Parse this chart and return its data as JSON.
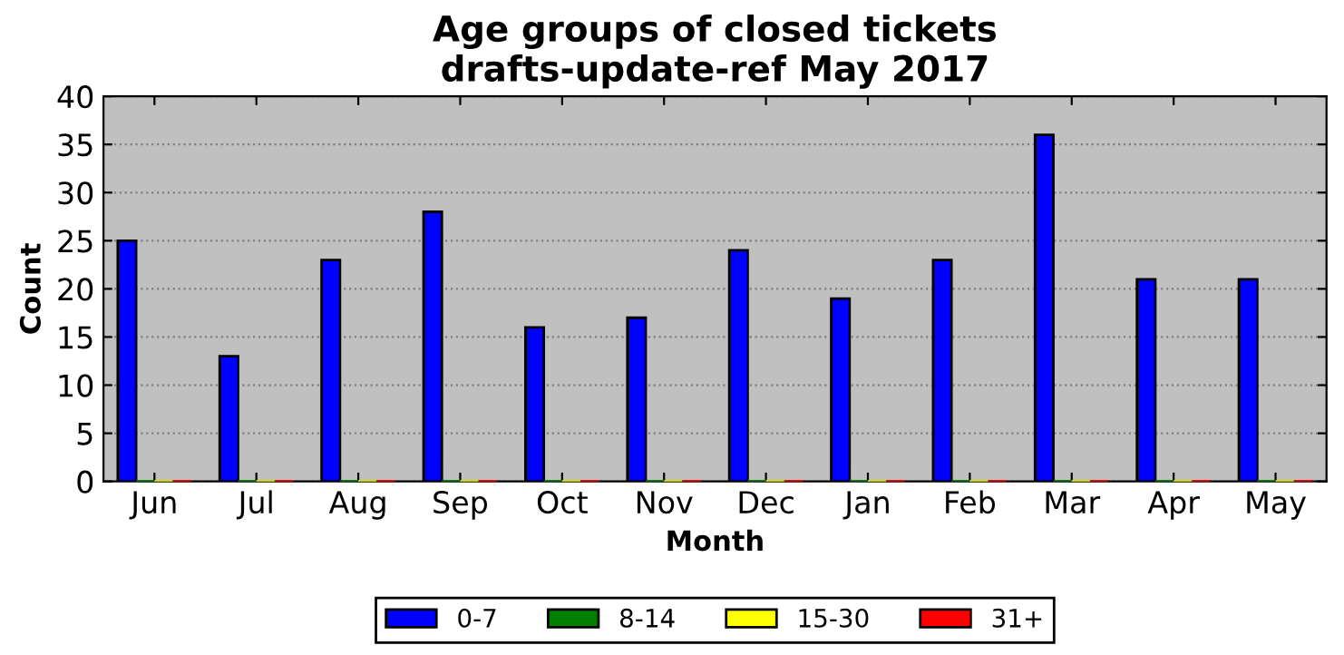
{
  "chart_data": {
    "type": "bar",
    "title": "Age groups of closed tickets\ndrafts-update-ref May 2017",
    "xlabel": "Month",
    "ylabel": "Count",
    "categories": [
      "Jun",
      "Jul",
      "Aug",
      "Sep",
      "Oct",
      "Nov",
      "Dec",
      "Jan",
      "Feb",
      "Mar",
      "Apr",
      "May"
    ],
    "series": [
      {
        "name": "0-7",
        "color": "#0000ff",
        "values": [
          25,
          13,
          23,
          28,
          16,
          17,
          24,
          19,
          23,
          36,
          21,
          21
        ]
      },
      {
        "name": "8-14",
        "color": "#008000",
        "values": [
          0,
          0,
          0,
          0,
          0,
          0,
          0,
          0,
          0,
          0,
          0,
          0
        ]
      },
      {
        "name": "15-30",
        "color": "#ffff00",
        "values": [
          0,
          0,
          0,
          0,
          0,
          0,
          0,
          0,
          0,
          0,
          0,
          0
        ]
      },
      {
        "name": "31+",
        "color": "#ff0000",
        "values": [
          0,
          0,
          0,
          0,
          0,
          0,
          0,
          0,
          0,
          0,
          0,
          0
        ]
      }
    ],
    "ylim": [
      0,
      40
    ],
    "yticks": [
      0,
      5,
      10,
      15,
      20,
      25,
      30,
      35,
      40
    ],
    "grid": "y",
    "legend": "bottom"
  }
}
